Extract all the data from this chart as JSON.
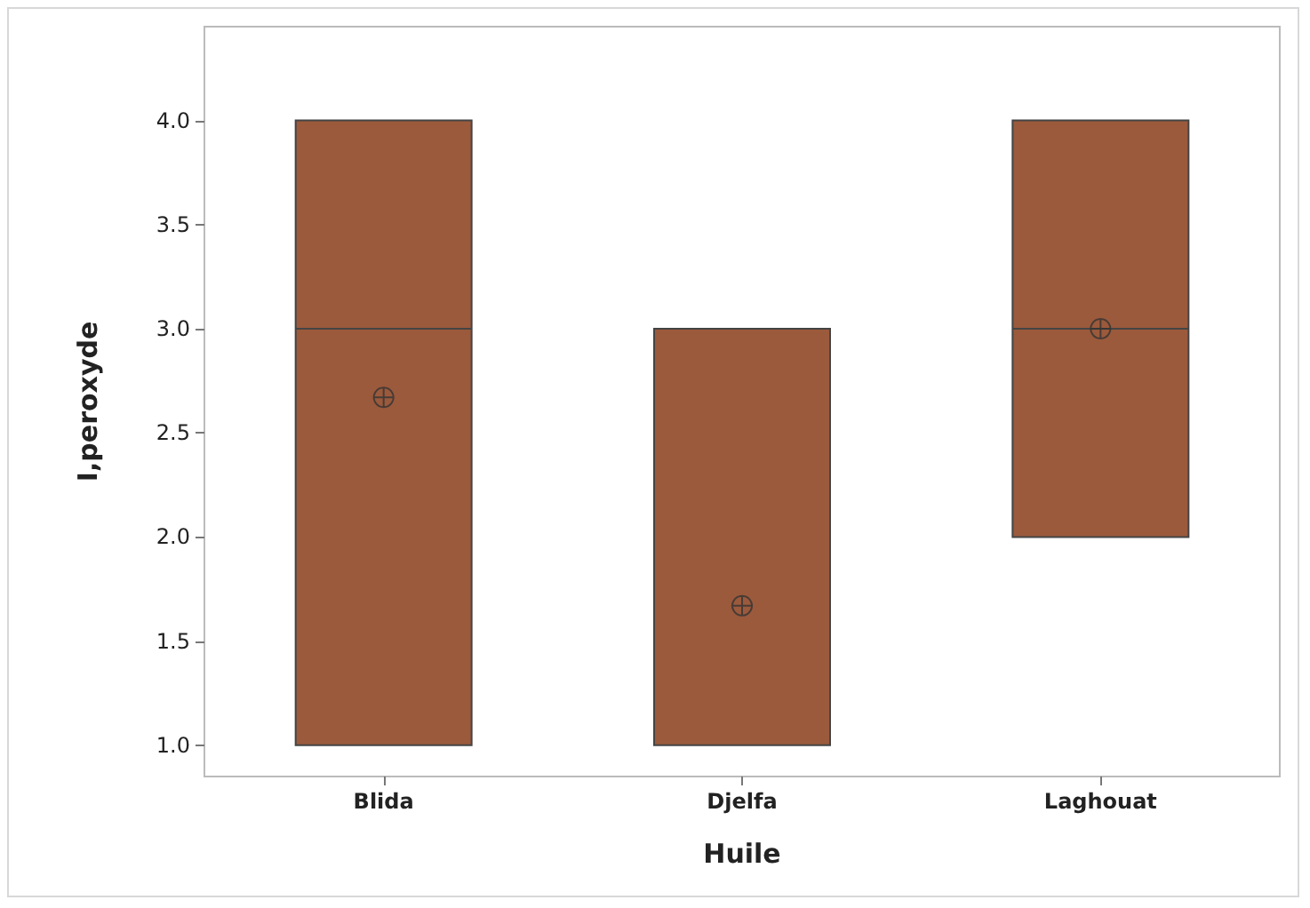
{
  "chart_data": {
    "type": "box",
    "xlabel": "Huile",
    "ylabel": "I,peroxyde",
    "categories": [
      "Blida",
      "Djelfa",
      "Laghouat"
    ],
    "color": "#9b5a3c",
    "boxes": [
      {
        "low": 1,
        "q1": 1,
        "median": 3,
        "q3": 4,
        "high": 4,
        "mean": 2.67
      },
      {
        "low": 1,
        "q1": 1,
        "median": 1,
        "q3": 3,
        "high": 3,
        "mean": 1.67
      },
      {
        "low": 2,
        "q1": 2,
        "median": 3,
        "q3": 4,
        "high": 4,
        "mean": 3
      }
    ],
    "ylim": [
      0.85,
      4.45
    ],
    "yticks": [
      {
        "value": 1,
        "label": "1.0"
      },
      {
        "value": 1.5,
        "label": "1.5"
      },
      {
        "value": 2,
        "label": "2.0"
      },
      {
        "value": 2.5,
        "label": "2.5"
      },
      {
        "value": 3,
        "label": "3.0"
      },
      {
        "value": 3.5,
        "label": "3.5"
      },
      {
        "value": 4,
        "label": "4.0"
      }
    ],
    "grid": false
  }
}
